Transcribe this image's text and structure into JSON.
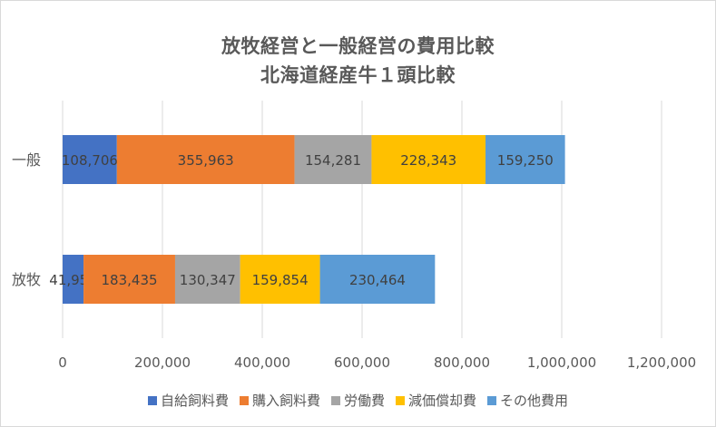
{
  "chart_data": {
    "type": "bar",
    "orientation": "horizontal",
    "stacked": true,
    "title": [
      "放牧経営と一般経営の費用比較",
      "北海道経産牛１頭比較"
    ],
    "categories": [
      "一般",
      "放牧"
    ],
    "series": [
      {
        "name": "自給飼料費",
        "color": "#4472c4",
        "values": [
          108706,
          41958
        ],
        "labels": [
          "108,706",
          "41,958"
        ]
      },
      {
        "name": "購入飼料費",
        "color": "#ed7d31",
        "values": [
          355963,
          183435
        ],
        "labels": [
          "355,963",
          "183,435"
        ]
      },
      {
        "name": "労働費",
        "color": "#a5a5a5",
        "values": [
          154281,
          130347
        ],
        "labels": [
          "154,281",
          "130,347"
        ]
      },
      {
        "name": "減価償却費",
        "color": "#ffc000",
        "values": [
          228343,
          159854
        ],
        "labels": [
          "228,343",
          "159,854"
        ]
      },
      {
        "name": "その他費用",
        "color": "#5b9bd5",
        "values": [
          159250,
          230464
        ],
        "labels": [
          "159,250",
          "230,464"
        ]
      }
    ],
    "xlim": [
      0,
      1200000
    ],
    "x_ticks": [
      0,
      200000,
      400000,
      600000,
      800000,
      1000000,
      1200000
    ],
    "x_tick_labels": [
      "0",
      "200,000",
      "400,000",
      "600,000",
      "800,000",
      "1,000,000",
      "1,200,000"
    ],
    "grid": true,
    "legend_position": "bottom"
  }
}
